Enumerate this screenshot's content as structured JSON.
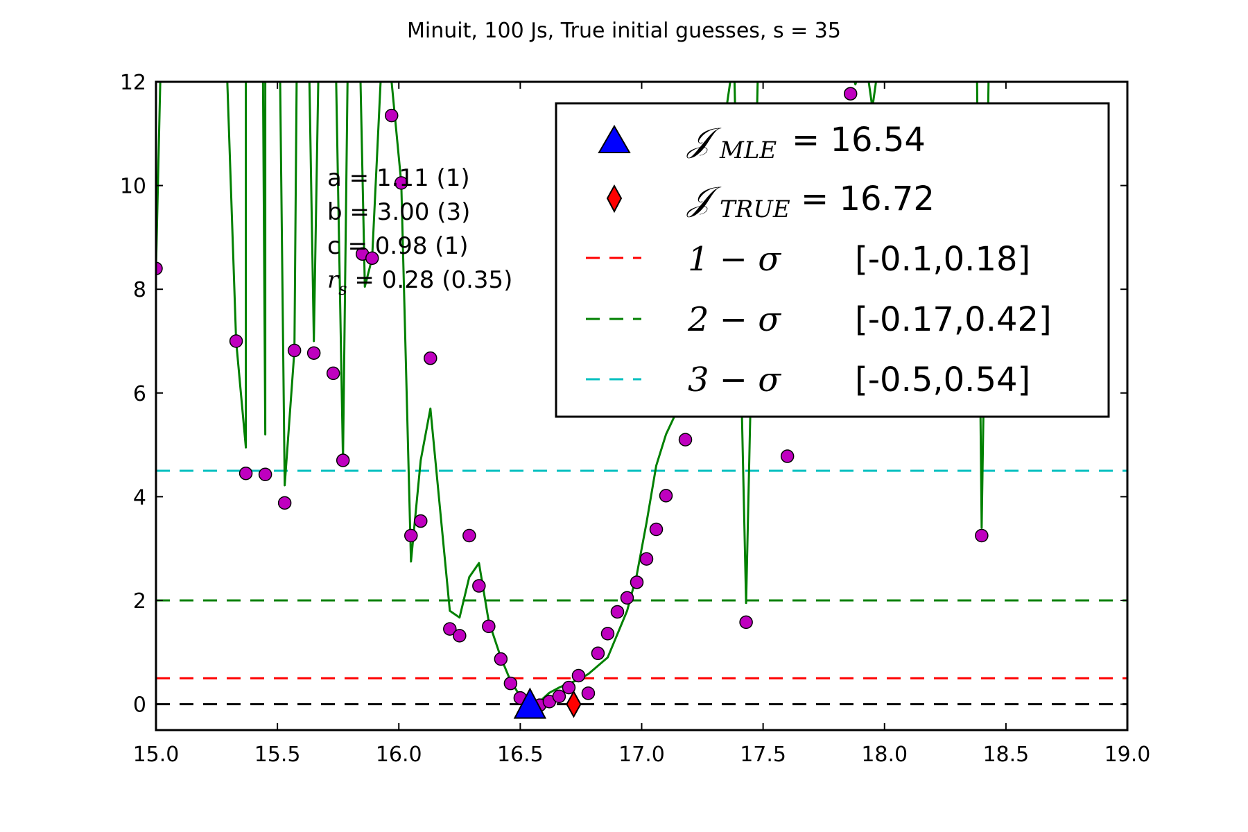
{
  "chart_data": {
    "type": "scatter",
    "title": "Minuit, 100 Js, True initial guesses, s = 35",
    "xlabel": "",
    "ylabel": "",
    "xlim": [
      15.0,
      19.0
    ],
    "ylim": [
      -0.5,
      12
    ],
    "x_ticks": [
      "15.0",
      "15.5",
      "16.0",
      "16.5",
      "17.0",
      "17.5",
      "18.0",
      "18.5",
      "19.0"
    ],
    "y_ticks": [
      "0",
      "2",
      "4",
      "6",
      "8",
      "10",
      "12"
    ],
    "series": [
      {
        "kind": "points",
        "color": "#bf00bf",
        "points": [
          [
            15.0,
            8.4
          ],
          [
            15.33,
            7.0
          ],
          [
            15.37,
            4.45
          ],
          [
            15.45,
            4.43
          ],
          [
            15.53,
            3.88
          ],
          [
            15.57,
            6.82
          ],
          [
            15.65,
            6.77
          ],
          [
            15.73,
            6.38
          ],
          [
            15.77,
            4.7
          ],
          [
            15.85,
            8.68
          ],
          [
            15.89,
            8.6
          ],
          [
            15.97,
            11.35
          ],
          [
            16.01,
            10.05
          ],
          [
            16.05,
            3.25
          ],
          [
            16.09,
            3.53
          ],
          [
            16.13,
            6.67
          ],
          [
            16.21,
            1.45
          ],
          [
            16.25,
            1.32
          ],
          [
            16.29,
            3.25
          ],
          [
            16.33,
            2.28
          ],
          [
            16.37,
            1.5
          ],
          [
            16.42,
            0.87
          ],
          [
            16.46,
            0.4
          ],
          [
            16.5,
            0.12
          ],
          [
            16.54,
            0.02
          ],
          [
            16.58,
            -0.02
          ],
          [
            16.62,
            0.05
          ],
          [
            16.66,
            0.15
          ],
          [
            16.7,
            0.32
          ],
          [
            16.74,
            0.55
          ],
          [
            16.78,
            0.21
          ],
          [
            16.82,
            0.98
          ],
          [
            16.86,
            1.36
          ],
          [
            16.9,
            1.78
          ],
          [
            16.94,
            2.05
          ],
          [
            16.98,
            2.35
          ],
          [
            17.02,
            2.8
          ],
          [
            17.06,
            3.37
          ],
          [
            17.1,
            4.02
          ],
          [
            17.18,
            5.1
          ],
          [
            17.43,
            1.58
          ],
          [
            17.6,
            4.78
          ],
          [
            17.86,
            11.77
          ],
          [
            18.4,
            3.25
          ]
        ]
      },
      {
        "kind": "line",
        "color": "#008000",
        "points": [
          [
            15.0,
            8.4
          ],
          [
            15.02,
            12.5
          ],
          [
            15.29,
            12.5
          ],
          [
            15.33,
            7.0
          ],
          [
            15.37,
            4.95
          ],
          [
            15.37,
            12.5
          ],
          [
            15.44,
            12.5
          ],
          [
            15.45,
            5.2
          ],
          [
            15.45,
            12.5
          ],
          [
            15.51,
            12.5
          ],
          [
            15.53,
            4.22
          ],
          [
            15.57,
            6.82
          ],
          [
            15.58,
            12.5
          ],
          [
            15.63,
            12.5
          ],
          [
            15.65,
            7.0
          ],
          [
            15.67,
            12.5
          ],
          [
            15.74,
            12.5
          ],
          [
            15.77,
            4.7
          ],
          [
            15.79,
            12.5
          ],
          [
            15.84,
            12.5
          ],
          [
            15.86,
            8.05
          ],
          [
            15.89,
            8.6
          ],
          [
            15.93,
            12.5
          ],
          [
            15.96,
            12.5
          ],
          [
            16.01,
            10.05
          ],
          [
            16.05,
            2.75
          ],
          [
            16.09,
            4.7
          ],
          [
            16.13,
            5.7
          ],
          [
            16.21,
            1.8
          ],
          [
            16.25,
            1.67
          ],
          [
            16.29,
            2.45
          ],
          [
            16.33,
            2.72
          ],
          [
            16.37,
            1.6
          ],
          [
            16.42,
            0.9
          ],
          [
            16.46,
            0.45
          ],
          [
            16.5,
            0.15
          ],
          [
            16.54,
            0.02
          ],
          [
            16.58,
            0.05
          ],
          [
            16.62,
            0.22
          ],
          [
            16.66,
            0.32
          ],
          [
            16.7,
            0.4
          ],
          [
            16.74,
            0.47
          ],
          [
            16.78,
            0.58
          ],
          [
            16.86,
            0.9
          ],
          [
            16.94,
            1.8
          ],
          [
            16.98,
            2.5
          ],
          [
            17.02,
            3.5
          ],
          [
            17.06,
            4.6
          ],
          [
            17.1,
            5.2
          ],
          [
            17.18,
            6.0
          ],
          [
            17.38,
            12.5
          ],
          [
            17.43,
            1.95
          ],
          [
            17.48,
            12.5
          ],
          [
            17.85,
            12.5
          ],
          [
            17.88,
            11.95
          ],
          [
            17.92,
            12.5
          ],
          [
            17.95,
            11.5
          ],
          [
            17.98,
            12.5
          ],
          [
            18.38,
            12.5
          ],
          [
            18.4,
            3.4
          ],
          [
            18.43,
            12.5
          ]
        ]
      }
    ],
    "hlines": [
      {
        "y": 0,
        "color": "#000000"
      },
      {
        "y": 0.5,
        "color": "#ff0000"
      },
      {
        "y": 2.0,
        "color": "#008000"
      },
      {
        "y": 4.5,
        "color": "#00bfbf"
      }
    ],
    "markers": [
      {
        "kind": "triangle",
        "x": 16.54,
        "y": 0.0,
        "color": "#0000ff"
      },
      {
        "kind": "diamond",
        "x": 16.72,
        "y": 0.0,
        "color": "#ff0000"
      }
    ],
    "annotation": {
      "lines": [
        "a = 1.11 (1)",
        "b = 3.00 (3)",
        "c = 0.98 (1)"
      ],
      "rs_symbol": "r",
      "rs_sub": "s",
      "rs_value": " = 0.28 (0.35)"
    },
    "legend": {
      "placement": "top-right",
      "entries": [
        {
          "marker": "triangle",
          "color": "#0000ff",
          "sym": "𝒥",
          "sub": "MLE",
          "value": " = 16.54"
        },
        {
          "marker": "diamond",
          "color": "#ff0000",
          "sym": "𝒥",
          "sub": "TRUE",
          "value": " = 16.72"
        },
        {
          "marker": "dash",
          "color": "#ff0000",
          "math": "1 − σ",
          "value": "[-0.1,0.18]"
        },
        {
          "marker": "dash",
          "color": "#008000",
          "math": "2 − σ",
          "value": "[-0.17,0.42]"
        },
        {
          "marker": "dash",
          "color": "#00bfbf",
          "math": "3 − σ",
          "value": "[-0.5,0.54]"
        }
      ]
    }
  }
}
